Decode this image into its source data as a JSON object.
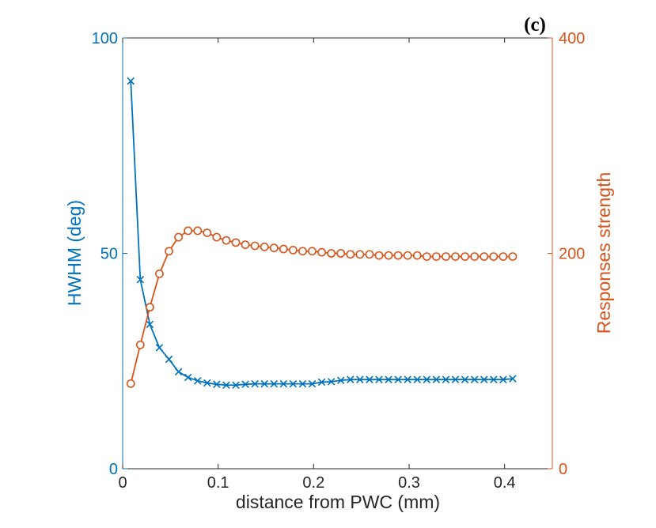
{
  "chart_data": {
    "type": "line",
    "panel_label": "(c)",
    "xlabel": "distance from PWC (mm)",
    "ylabel_left": "HWHM (deg)",
    "ylabel_right": "Responses strength",
    "xlim": [
      0,
      0.45
    ],
    "ylim_left": [
      0,
      100
    ],
    "ylim_right": [
      0,
      400
    ],
    "xticks": [
      0,
      0.1,
      0.2,
      0.3,
      0.4
    ],
    "xtick_labels": [
      "0",
      "0.1",
      "0.2",
      "0.3",
      "0.4"
    ],
    "yticks_left": [
      0,
      50,
      100
    ],
    "ytick_labels_left": [
      "0",
      "50",
      "100"
    ],
    "yticks_right": [
      0,
      200,
      400
    ],
    "ytick_labels_right": [
      "0",
      "200",
      "400"
    ],
    "colors": {
      "left": "#0072BD",
      "right": "#D95319",
      "axis": "#262626"
    },
    "x": [
      0.0085,
      0.0185,
      0.0285,
      0.0385,
      0.0485,
      0.0585,
      0.0685,
      0.0785,
      0.0885,
      0.0985,
      0.1085,
      0.1185,
      0.1285,
      0.1385,
      0.1485,
      0.1585,
      0.1685,
      0.1785,
      0.1885,
      0.1985,
      0.2085,
      0.2185,
      0.2285,
      0.2385,
      0.2485,
      0.2585,
      0.2685,
      0.2785,
      0.2885,
      0.2985,
      0.3085,
      0.3185,
      0.3285,
      0.3385,
      0.3485,
      0.3585,
      0.3685,
      0.3785,
      0.3885,
      0.3985,
      0.4085
    ],
    "series": [
      {
        "name": "HWHM (deg)",
        "axis": "left",
        "marker": "x",
        "color": "#0072BD",
        "values": [
          90,
          43.9,
          33.5,
          28.1,
          25.4,
          22.5,
          21.2,
          20.4,
          19.9,
          19.6,
          19.4,
          19.4,
          19.6,
          19.7,
          19.7,
          19.7,
          19.7,
          19.7,
          19.7,
          19.7,
          20.1,
          20.2,
          20.5,
          20.7,
          20.7,
          20.7,
          20.7,
          20.7,
          20.7,
          20.7,
          20.7,
          20.7,
          20.7,
          20.7,
          20.7,
          20.7,
          20.7,
          20.7,
          20.7,
          20.7,
          20.9
        ]
      },
      {
        "name": "Responses strength",
        "axis": "right",
        "marker": "o",
        "color": "#D95319",
        "values": [
          79,
          115,
          150,
          181,
          202,
          215,
          221,
          221,
          219,
          215,
          212,
          210,
          208,
          207,
          206,
          205,
          204,
          203,
          202,
          202,
          201,
          200,
          200,
          199,
          199,
          199,
          198,
          198,
          198,
          198,
          198,
          197,
          197,
          197,
          197,
          197,
          197,
          197,
          197,
          197,
          197
        ]
      }
    ]
  }
}
